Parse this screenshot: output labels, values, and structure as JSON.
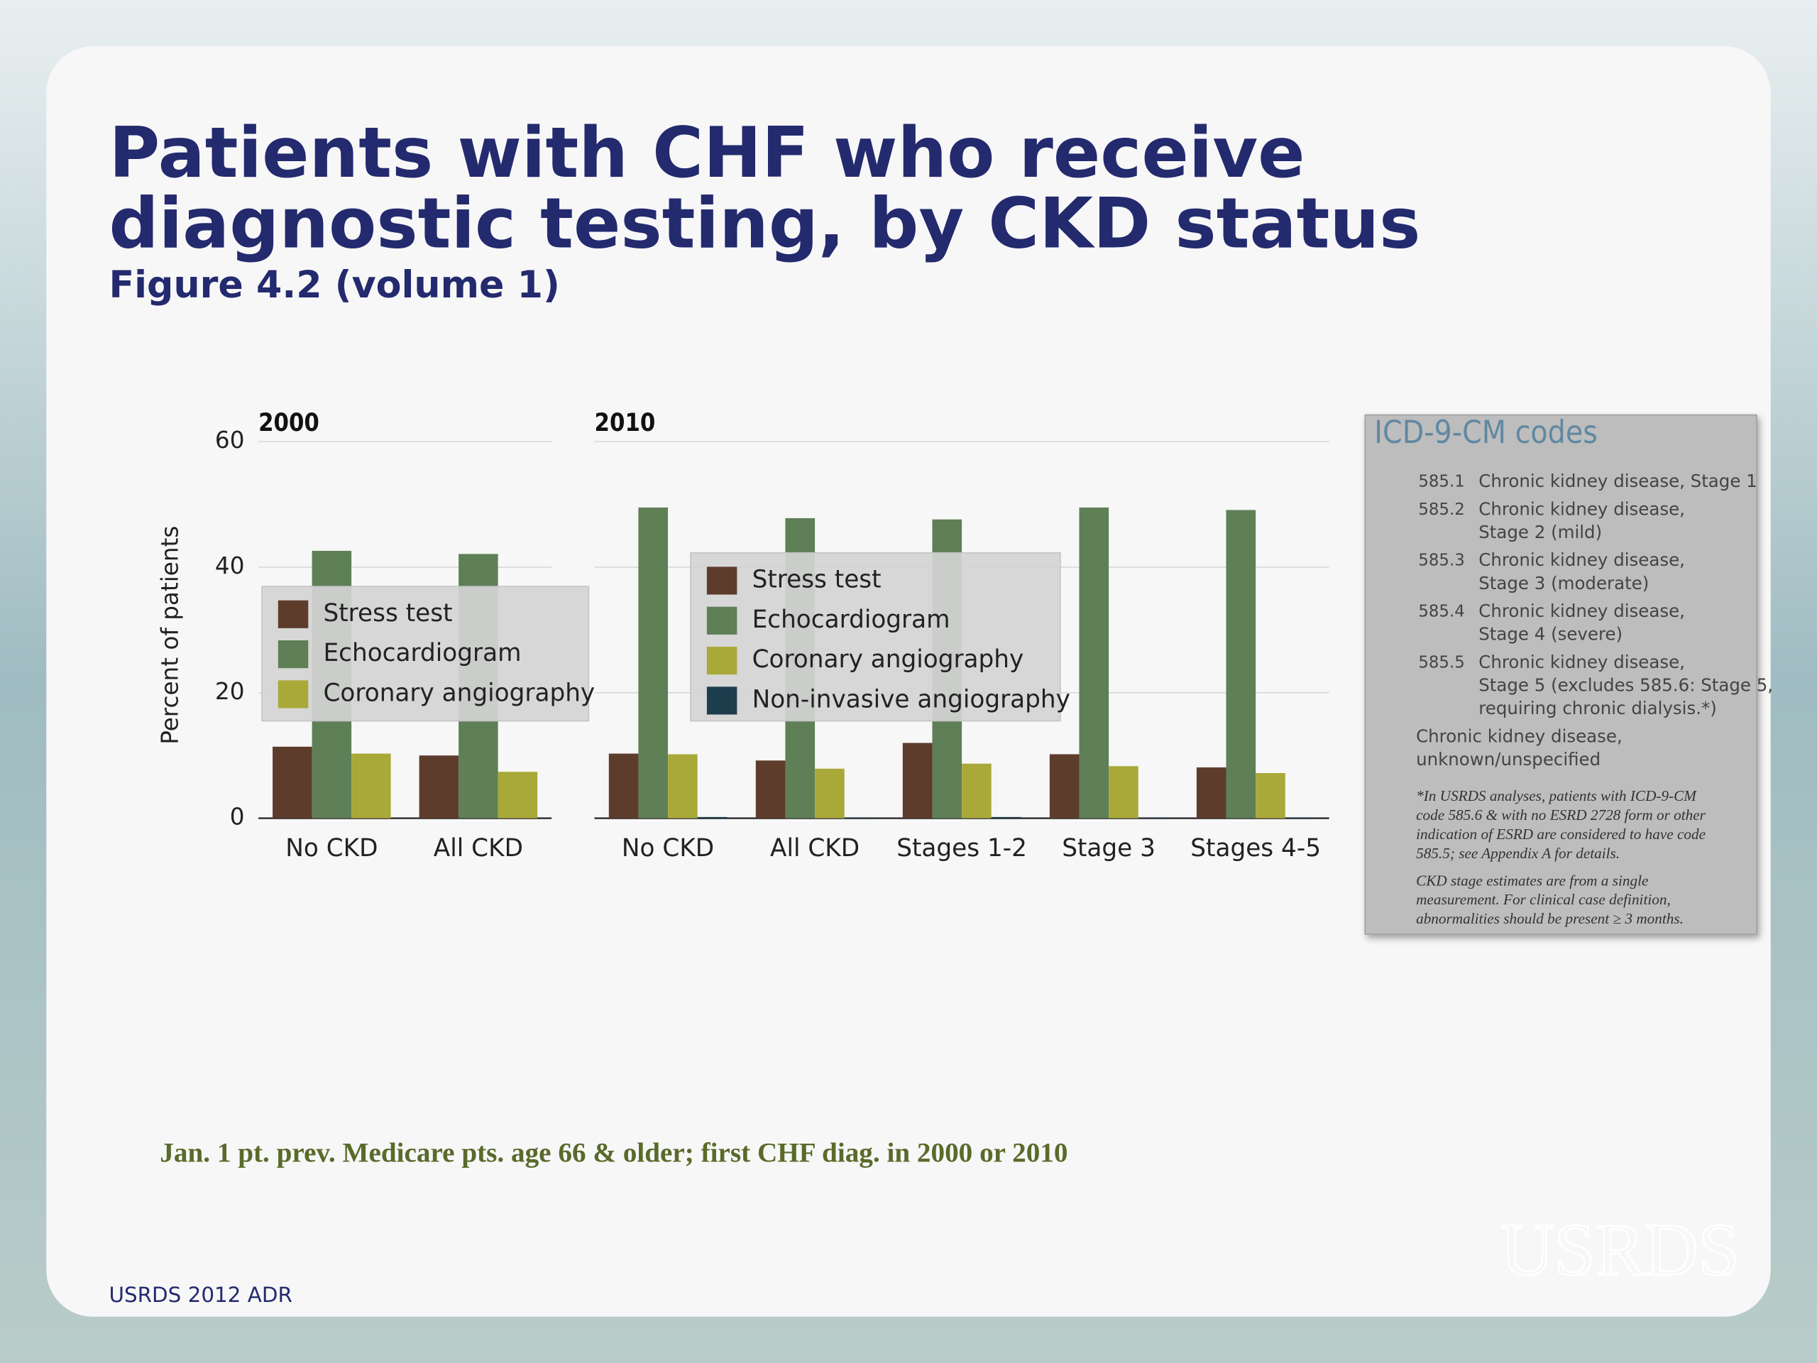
{
  "header": {
    "title": [
      "Patients with CHF who receive",
      "diagnostic testing, by CKD status"
    ],
    "subtitle": "Figure 4.2 (volume 1)"
  },
  "chart_data": [
    {
      "type": "bar",
      "title": "2000",
      "y_label": "Percent of patients",
      "categories": [
        "No CKD",
        "All CKD"
      ],
      "series": [
        {
          "name": "Stress test",
          "color": "#5e3c2c",
          "values": [
            11.4,
            10.0
          ]
        },
        {
          "name": "Echocardiogram",
          "color": "#5f7f56",
          "values": [
            42.6,
            42.1
          ]
        },
        {
          "name": "Coronary angiography",
          "color": "#a9a93a",
          "values": [
            10.3,
            7.4
          ]
        }
      ],
      "ylim": [
        0,
        60
      ],
      "yticks": [
        0,
        20,
        40,
        60
      ],
      "grid": true
    },
    {
      "type": "bar",
      "title": "2010",
      "categories": [
        "No CKD",
        "All CKD",
        "Stages 1-2",
        "Stage 3",
        "Stages 4-5"
      ],
      "series": [
        {
          "name": "Stress test",
          "color": "#5e3c2c",
          "values": [
            10.3,
            9.2,
            12.0,
            10.2,
            8.1
          ]
        },
        {
          "name": "Echocardiogram",
          "color": "#5f7f56",
          "values": [
            49.5,
            47.8,
            47.6,
            49.5,
            49.1
          ]
        },
        {
          "name": "Coronary angiography",
          "color": "#a9a93a",
          "values": [
            10.2,
            7.9,
            8.7,
            8.3,
            7.2
          ]
        },
        {
          "name": "Non-invasive angiography",
          "color": "#1d3d4d",
          "values": [
            0.2,
            0.1,
            0.2,
            0.1,
            0.1
          ]
        }
      ],
      "ylim": [
        0,
        60
      ],
      "yticks": [
        0,
        20,
        40,
        60
      ],
      "grid": true
    }
  ],
  "codes_box": {
    "title": "ICD-9-CM codes",
    "entries": [
      {
        "code": "585.1",
        "lines": [
          "Chronic kidney disease, Stage 1"
        ]
      },
      {
        "code": "585.2",
        "lines": [
          "Chronic kidney disease,",
          "Stage 2 (mild)"
        ]
      },
      {
        "code": "585.3",
        "lines": [
          "Chronic kidney disease,",
          "Stage 3 (moderate)"
        ]
      },
      {
        "code": "585.4",
        "lines": [
          "Chronic kidney disease,",
          "Stage 4 (severe)"
        ]
      },
      {
        "code": "585.5",
        "lines": [
          "Chronic kidney disease,",
          "Stage 5 (excludes 585.6: Stage 5,",
          "requiring chronic dialysis.*)"
        ]
      }
    ],
    "other": [
      "Chronic kidney disease,",
      "unknown/unspecified"
    ],
    "notes": [
      [
        "*In USRDS analyses, patients with ICD-9-CM",
        "code 585.6 & with no ESRD 2728 form or other",
        "indication of ESRD are considered to have code",
        "585.5; see Appendix A for details."
      ],
      [
        "CKD stage estimates are from a single",
        "measurement. For clinical case definition,",
        "abnormalities should be present ≥ 3 months."
      ]
    ]
  },
  "footnote": "Jan. 1 pt. prev. Medicare pts. age 66 & older; first CHF diag. in 2000 or 2010",
  "footer": "USRDS 2012 ADR",
  "logo": "USRDS"
}
